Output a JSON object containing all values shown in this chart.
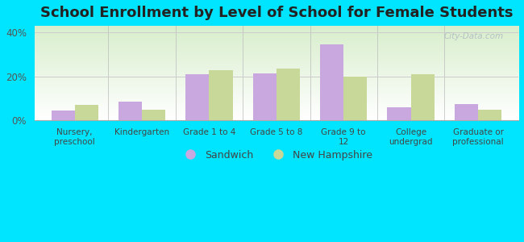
{
  "title": "School Enrollment by Level of School for Female Students",
  "categories": [
    "Nursery,\npreschool",
    "Kindergarten",
    "Grade 1 to 4",
    "Grade 5 to 8",
    "Grade 9 to\n12",
    "College\nundergrad",
    "Graduate or\nprofessional"
  ],
  "sandwich_values": [
    4.5,
    8.5,
    21.0,
    21.5,
    34.5,
    6.0,
    7.5
  ],
  "nh_values": [
    7.0,
    5.0,
    23.0,
    23.5,
    20.0,
    21.0,
    5.0
  ],
  "sandwich_color": "#c9a8e0",
  "nh_color": "#c8d898",
  "background_color": "#00e5ff",
  "plot_bg_top": "#d8eecc",
  "plot_bg_bottom": "#ffffff",
  "ylim": [
    0,
    43
  ],
  "yticks": [
    0,
    20,
    40
  ],
  "ytick_labels": [
    "0%",
    "20%",
    "40%"
  ],
  "legend_labels": [
    "Sandwich",
    "New Hampshire"
  ],
  "bar_width": 0.35,
  "title_fontsize": 13,
  "watermark": "City-Data.com"
}
